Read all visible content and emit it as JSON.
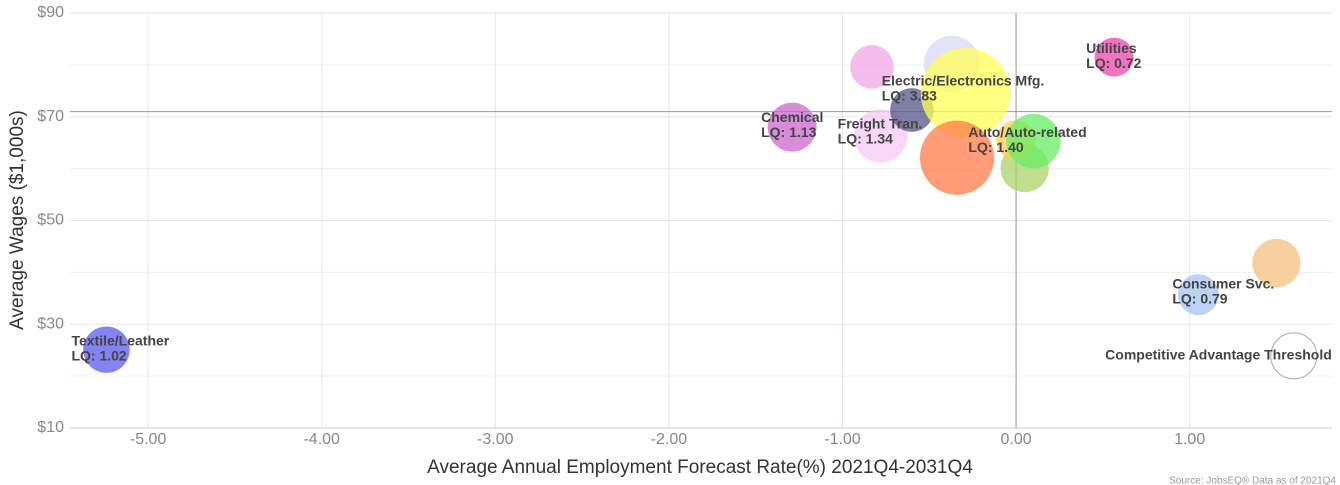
{
  "chart_data": {
    "type": "bubble",
    "x_label": "Average Annual Employment Forecast Rate(%) 2021Q4-2031Q4",
    "y_label": "Average Wages ($1,000s)",
    "source": "Source: JobsEQ® Data as of 2021Q4",
    "x": [
      -5.24,
      -1.29,
      -0.83,
      -0.78,
      -0.6,
      -0.37,
      -0.29,
      -0.34,
      0.05,
      0.0,
      0.1,
      0.565,
      1.05,
      1.5,
      1.6
    ],
    "values": [
      25.1,
      68.0,
      79.6,
      66.3,
      71.3,
      80.2,
      74.6,
      62.1,
      60.1,
      65.5,
      65.3,
      81.5,
      35.7,
      41.8,
      23.9
    ],
    "sizes": [
      1.02,
      1.13,
      0.9,
      1.34,
      0.9,
      1.48,
      3.83,
      2.6,
      1.1,
      0.75,
      1.4,
      0.72,
      0.79,
      1.1,
      1.0
    ],
    "colors": [
      "#5a5aee",
      "#cc66cc",
      "#f2a6e8",
      "#f6c8f6",
      "#55558a",
      "#d8d8f2",
      "#ffff55",
      "#ff7a48",
      "#aad46a",
      "#ffcc55",
      "#66ee66",
      "#ee44aa",
      "#a6c4f2",
      "#f5c080",
      "#ffffff"
    ],
    "labels": [
      "Textile/Leather",
      "Chemical",
      null,
      "Freight Tran.",
      null,
      null,
      "Electric/Electronics Mfg.",
      null,
      null,
      null,
      "Auto/Auto-related",
      "Utilities",
      "Consumer Svc.",
      null,
      "Competitive Advantage Threshold"
    ],
    "value_labels": [
      "LQ: 1.02",
      "LQ: 1.13",
      null,
      "LQ: 1.34",
      null,
      null,
      "LQ: 3.83",
      null,
      null,
      null,
      "LQ: 1.40",
      "LQ: 0.72",
      "LQ: 0.79",
      null,
      null
    ],
    "xlim": [
      -5.45,
      1.82
    ],
    "ylim": [
      10,
      90
    ],
    "xticks": [
      {
        "value": -5,
        "label": "-5.00"
      },
      {
        "value": -4,
        "label": "-4.00"
      },
      {
        "value": -3,
        "label": "-3.00"
      },
      {
        "value": -2,
        "label": "-2.00"
      },
      {
        "value": -1,
        "label": "-1.00"
      },
      {
        "value": 0,
        "label": "0.00"
      },
      {
        "value": 1,
        "label": "1.00"
      }
    ],
    "yticks": [
      {
        "value": 10,
        "label": "$10"
      },
      {
        "value": 30,
        "label": "$30"
      },
      {
        "value": 50,
        "label": "$50"
      },
      {
        "value": 70,
        "label": "$70"
      },
      {
        "value": 90,
        "label": "$90"
      }
    ],
    "minor_yticks": [
      20,
      40,
      60,
      80
    ],
    "reference_x": 0,
    "reference_y": 71,
    "grid": true
  }
}
